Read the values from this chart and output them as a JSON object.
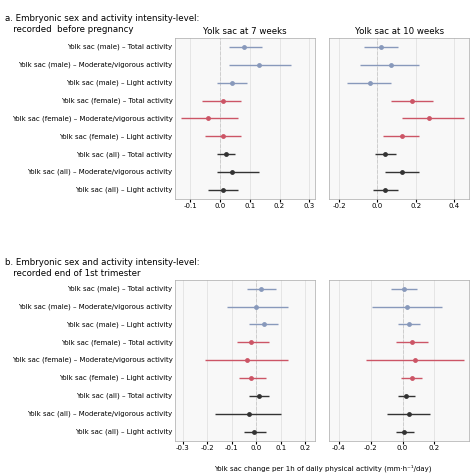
{
  "panel_a_title": "a. Embryonic sex and activity intensity-level:\n   recorded  before pregnancy",
  "panel_b_title": "b. Embryonic sex and activity intensity-level:\n   recorded end of 1st trimester",
  "col1_title": "Yolk sac at 7 weeks",
  "col2_title_a": "Yolk sac at 10 weeks",
  "xlabel": "Yolk sac change per 1h of daily physical activity (mm·h⁻¹/day)",
  "row_labels": [
    "Yolk sac (male) – Total activity",
    "Yolk sac (male) – Moderate/vigorous activity",
    "Yolk sac (male) – Light activity",
    "Yolk sac (female) – Total activity",
    "Yolk sac (female) – Moderate/vigorous activity",
    "Yolk sac (female) – Light activity",
    "Yolk sac (all) – Total activity",
    "Yolk sac (all) – Moderate/vigorous activity",
    "Yolk sac (all) – Light activity"
  ],
  "colors": {
    "male": "#8899bb",
    "female": "#cc5566",
    "all": "#333333"
  },
  "panel_a": {
    "week7": {
      "estimates": [
        0.08,
        0.13,
        0.04,
        0.01,
        -0.04,
        0.01,
        0.02,
        0.04,
        0.01
      ],
      "ci_low": [
        0.03,
        0.03,
        -0.01,
        -0.06,
        -0.13,
        -0.05,
        -0.01,
        -0.01,
        -0.04
      ],
      "ci_high": [
        0.14,
        0.24,
        0.09,
        0.07,
        0.06,
        0.07,
        0.05,
        0.13,
        0.06
      ],
      "xlim": [
        -0.15,
        0.32
      ],
      "xticks": [
        -0.1,
        0.0,
        0.1,
        0.2,
        0.3
      ]
    },
    "week10": {
      "estimates": [
        0.02,
        0.07,
        -0.04,
        0.18,
        0.27,
        0.13,
        0.04,
        0.13,
        0.04
      ],
      "ci_low": [
        -0.07,
        -0.09,
        -0.16,
        0.07,
        0.13,
        0.03,
        -0.01,
        0.04,
        -0.02
      ],
      "ci_high": [
        0.11,
        0.22,
        0.07,
        0.29,
        0.45,
        0.22,
        0.1,
        0.22,
        0.11
      ],
      "xlim": [
        -0.25,
        0.48
      ],
      "xticks": [
        -0.2,
        0.0,
        0.2,
        0.4
      ]
    }
  },
  "panel_b": {
    "week7": {
      "estimates": [
        0.02,
        0.0,
        0.03,
        -0.02,
        -0.04,
        -0.02,
        0.01,
        -0.03,
        -0.01
      ],
      "ci_low": [
        -0.04,
        -0.12,
        -0.03,
        -0.08,
        -0.21,
        -0.07,
        -0.03,
        -0.17,
        -0.05
      ],
      "ci_high": [
        0.08,
        0.13,
        0.09,
        0.05,
        0.13,
        0.04,
        0.05,
        0.1,
        0.04
      ],
      "xlim": [
        -0.33,
        0.24
      ],
      "xticks": [
        -0.3,
        -0.2,
        -0.1,
        0.0,
        0.1,
        0.2
      ]
    },
    "week10": {
      "estimates": [
        0.01,
        0.03,
        0.04,
        0.06,
        0.08,
        0.06,
        0.02,
        0.04,
        0.01
      ],
      "ci_low": [
        -0.07,
        -0.19,
        -0.03,
        -0.04,
        -0.23,
        -0.01,
        -0.03,
        -0.1,
        -0.04
      ],
      "ci_high": [
        0.09,
        0.25,
        0.11,
        0.16,
        0.39,
        0.12,
        0.08,
        0.17,
        0.07
      ],
      "xlim": [
        -0.46,
        0.42
      ],
      "xticks": [
        -0.4,
        -0.2,
        0.0,
        0.2
      ]
    }
  },
  "color_groups": [
    "male",
    "male",
    "male",
    "female",
    "female",
    "female",
    "all",
    "all",
    "all"
  ],
  "marker_size": 3.5,
  "linewidth": 1.0,
  "font_size": 5.0,
  "title_font_size": 6.2,
  "axis_font_size": 5.0,
  "grid_color": "#dddddd",
  "background_color": "#ffffff"
}
